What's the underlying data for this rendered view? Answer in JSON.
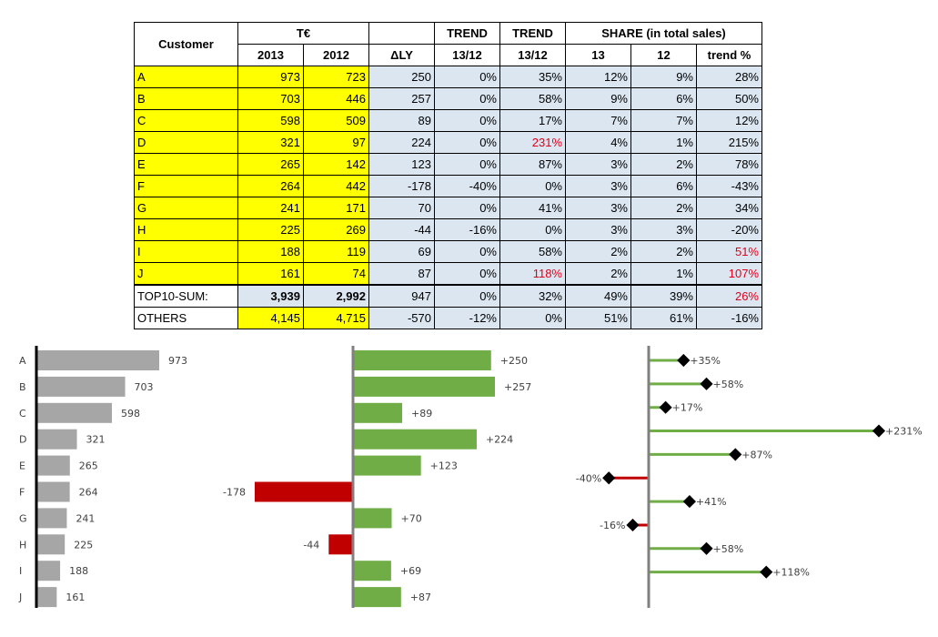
{
  "table": {
    "headers": {
      "customer": "Customer",
      "te": "T€",
      "y2013": "2013",
      "y2012": "2012",
      "dly": "ΔLY",
      "trend1": "TREND",
      "trend1_sub": "13/12",
      "trend2": "TREND",
      "trend2_sub": "13/12",
      "share": "SHARE (in total sales)",
      "share13": "13",
      "share12": "12",
      "share_trend": "trend %"
    },
    "rows": [
      {
        "name": "A",
        "v2013": "973",
        "v2012": "723",
        "dly": "250",
        "t1": "0%",
        "t2": "35%",
        "s13": "12%",
        "s12": "9%",
        "st": "28%"
      },
      {
        "name": "B",
        "v2013": "703",
        "v2012": "446",
        "dly": "257",
        "t1": "0%",
        "t2": "58%",
        "s13": "9%",
        "s12": "6%",
        "st": "50%"
      },
      {
        "name": "C",
        "v2013": "598",
        "v2012": "509",
        "dly": "89",
        "t1": "0%",
        "t2": "17%",
        "s13": "7%",
        "s12": "7%",
        "st": "12%"
      },
      {
        "name": "D",
        "v2013": "321",
        "v2012": "97",
        "dly": "224",
        "t1": "0%",
        "t2": "231%",
        "s13": "4%",
        "s12": "1%",
        "st": "215%"
      },
      {
        "name": "E",
        "v2013": "265",
        "v2012": "142",
        "dly": "123",
        "t1": "0%",
        "t2": "87%",
        "s13": "3%",
        "s12": "2%",
        "st": "78%"
      },
      {
        "name": "F",
        "v2013": "264",
        "v2012": "442",
        "dly": "-178",
        "t1": "-40%",
        "t2": "0%",
        "s13": "3%",
        "s12": "6%",
        "st": "-43%"
      },
      {
        "name": "G",
        "v2013": "241",
        "v2012": "171",
        "dly": "70",
        "t1": "0%",
        "t2": "41%",
        "s13": "3%",
        "s12": "2%",
        "st": "34%"
      },
      {
        "name": "H",
        "v2013": "225",
        "v2012": "269",
        "dly": "-44",
        "t1": "-16%",
        "t2": "0%",
        "s13": "3%",
        "s12": "3%",
        "st": "-20%"
      },
      {
        "name": "I",
        "v2013": "188",
        "v2012": "119",
        "dly": "69",
        "t1": "0%",
        "t2": "58%",
        "s13": "2%",
        "s12": "2%",
        "st": "51%"
      },
      {
        "name": "J",
        "v2013": "161",
        "v2012": "74",
        "dly": "87",
        "t1": "0%",
        "t2": "118%",
        "s13": "2%",
        "s12": "1%",
        "st": "107%"
      }
    ],
    "sum": {
      "name": "TOP10-SUM:",
      "v2013": "3,939",
      "v2012": "2,992",
      "dly": "947",
      "t1": "0%",
      "t2": "32%",
      "s13": "49%",
      "s12": "39%",
      "st": "26%"
    },
    "others": {
      "name": "OTHERS",
      "v2013": "4,145",
      "v2012": "4,715",
      "dly": "-570",
      "t1": "-12%",
      "t2": "0%",
      "s13": "51%",
      "s12": "61%",
      "st": "-16%"
    }
  },
  "chart_data": [
    {
      "type": "bar",
      "orientation": "horizontal",
      "categories": [
        "A",
        "B",
        "C",
        "D",
        "E",
        "F",
        "G",
        "H",
        "I",
        "J"
      ],
      "values": [
        973,
        703,
        598,
        321,
        265,
        264,
        241,
        225,
        188,
        161
      ],
      "labels": [
        "973",
        "703",
        "598",
        "321",
        "265",
        "264",
        "241",
        "225",
        "188",
        "161"
      ],
      "color": "#a6a6a6"
    },
    {
      "type": "bar",
      "orientation": "horizontal",
      "categories": [
        "A",
        "B",
        "C",
        "D",
        "E",
        "F",
        "G",
        "H",
        "I",
        "J"
      ],
      "values": [
        250,
        257,
        89,
        224,
        123,
        -178,
        70,
        -44,
        69,
        87
      ],
      "labels": [
        "+250",
        "+257",
        "+89",
        "+224",
        "+123",
        "-178",
        "+70",
        "-44",
        "+69",
        "+87"
      ],
      "pos_color": "#70ad47",
      "neg_color": "#c00000"
    },
    {
      "type": "lollipop",
      "orientation": "horizontal",
      "categories": [
        "A",
        "B",
        "C",
        "D",
        "E",
        "F",
        "G",
        "H",
        "I",
        "J"
      ],
      "values": [
        35,
        58,
        17,
        231,
        87,
        -40,
        41,
        -16,
        58,
        118
      ],
      "labels": [
        "+35%",
        "+58%",
        "+17%",
        "+231%",
        "+87%",
        "-40%",
        "+41%",
        "-16%",
        "+58%",
        "+118%"
      ],
      "pos_color": "#70ad47",
      "neg_color": "#c00000"
    }
  ]
}
